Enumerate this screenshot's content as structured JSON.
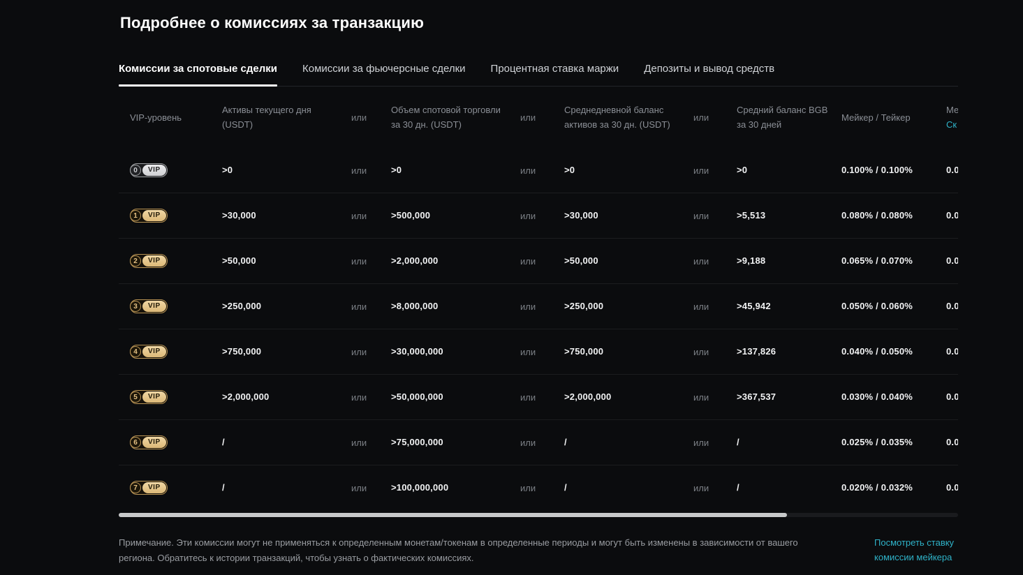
{
  "page": {
    "title": "Подробнее о комиссиях за транзакцию"
  },
  "tabs": {
    "items": [
      {
        "label": "Комиссии за спотовые сделки",
        "active": true
      },
      {
        "label": "Комиссии за фьючерсные сделки",
        "active": false
      },
      {
        "label": "Процентная ставка маржи",
        "active": false
      },
      {
        "label": "Депозиты и вывод средств",
        "active": false
      }
    ]
  },
  "table": {
    "or_label": "или",
    "vip_label": "VIP",
    "headers": {
      "vip": "VIP-уровень",
      "assets_l1": "Активы текущего дня",
      "assets_l2": "(USDT)",
      "volume_l1": "Объем спотовой торговли",
      "volume_l2": "за 30 дн. (USDT)",
      "avg_l1": "Среднедневной баланс",
      "avg_l2": "активов за 30 дн. (USDT)",
      "bgb_l1": "Средний баланс BGB",
      "bgb_l2": "за 30 дней",
      "maker_taker": "Мейкер / Тейкер",
      "clipped_l1": "Ме",
      "clipped_l2": "Ск"
    },
    "rows": [
      {
        "level": "0",
        "tier": "silver",
        "assets": ">0",
        "volume": ">0",
        "avg": ">0",
        "bgb": ">0",
        "maker_taker": "0.100% / 0.100%",
        "clipped": "0.0"
      },
      {
        "level": "1",
        "tier": "gold",
        "assets": ">30,000",
        "volume": ">500,000",
        "avg": ">30,000",
        "bgb": ">5,513",
        "maker_taker": "0.080% / 0.080%",
        "clipped": "0.0"
      },
      {
        "level": "2",
        "tier": "gold",
        "assets": ">50,000",
        "volume": ">2,000,000",
        "avg": ">50,000",
        "bgb": ">9,188",
        "maker_taker": "0.065% / 0.070%",
        "clipped": "0.0"
      },
      {
        "level": "3",
        "tier": "gold",
        "assets": ">250,000",
        "volume": ">8,000,000",
        "avg": ">250,000",
        "bgb": ">45,942",
        "maker_taker": "0.050% / 0.060%",
        "clipped": "0.0"
      },
      {
        "level": "4",
        "tier": "gold",
        "assets": ">750,000",
        "volume": ">30,000,000",
        "avg": ">750,000",
        "bgb": ">137,826",
        "maker_taker": "0.040% / 0.050%",
        "clipped": "0.0"
      },
      {
        "level": "5",
        "tier": "gold",
        "assets": ">2,000,000",
        "volume": ">50,000,000",
        "avg": ">2,000,000",
        "bgb": ">367,537",
        "maker_taker": "0.030% / 0.040%",
        "clipped": "0.0"
      },
      {
        "level": "6",
        "tier": "gold",
        "assets": "/",
        "volume": ">75,000,000",
        "avg": "/",
        "bgb": "/",
        "maker_taker": "0.025% / 0.035%",
        "clipped": "0.0"
      },
      {
        "level": "7",
        "tier": "gold",
        "assets": "/",
        "volume": ">100,000,000",
        "avg": "/",
        "bgb": "/",
        "maker_taker": "0.020% / 0.032%",
        "clipped": "0.0"
      }
    ]
  },
  "footer": {
    "note": "Примечание. Эти комиссии могут не применяться к определенным монетам/токенам в определенные периоды и могут быть изменены в зависимости от вашего региона. Обратитесь к истории транзакций, чтобы узнать о фактических комиссиях.",
    "link": "Посмотреть ставку комиссии мейкера"
  },
  "colors": {
    "accent_teal": "#2fb3c9",
    "badge_gold": "#dcb877",
    "badge_silver": "#cfd0d3",
    "active_tab_underline": "#ffffff"
  }
}
